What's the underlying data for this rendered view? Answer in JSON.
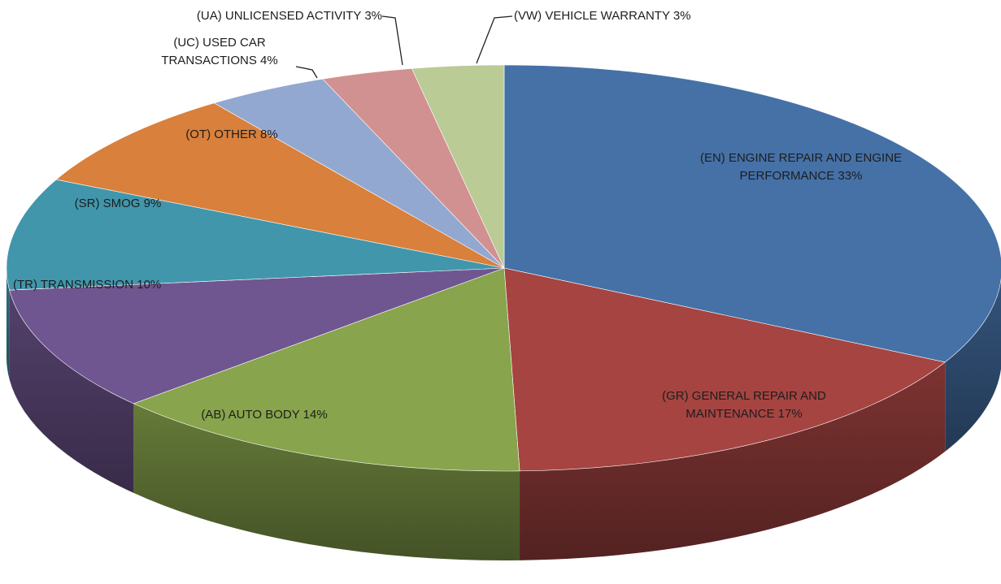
{
  "chart_data": {
    "type": "pie",
    "categories": [
      "(EN) ENGINE REPAIR AND ENGINE PERFORMANCE",
      "(GR) GENERAL REPAIR AND MAINTENANCE",
      "(AB) AUTO BODY",
      "(TR) TRANSMISSION",
      "(SR) SMOG",
      "(OT) OTHER",
      "(UC) USED CAR TRANSACTIONS",
      "(UA) UNLICENSED ACTIVITY",
      "(VW) VEHICLE WARRANTY"
    ],
    "values": [
      33,
      17,
      14,
      10,
      9,
      8,
      4,
      3,
      3
    ],
    "value_labels": [
      "33%",
      "17%",
      "14%",
      "10%",
      "9%",
      "8%",
      "4%",
      "3%",
      "3%"
    ],
    "colors": [
      "#4571a7",
      "#a64441",
      "#88a44c",
      "#705690",
      "#4196ac",
      "#d8803c",
      "#93a8d0",
      "#d19190",
      "#bacb95"
    ]
  }
}
